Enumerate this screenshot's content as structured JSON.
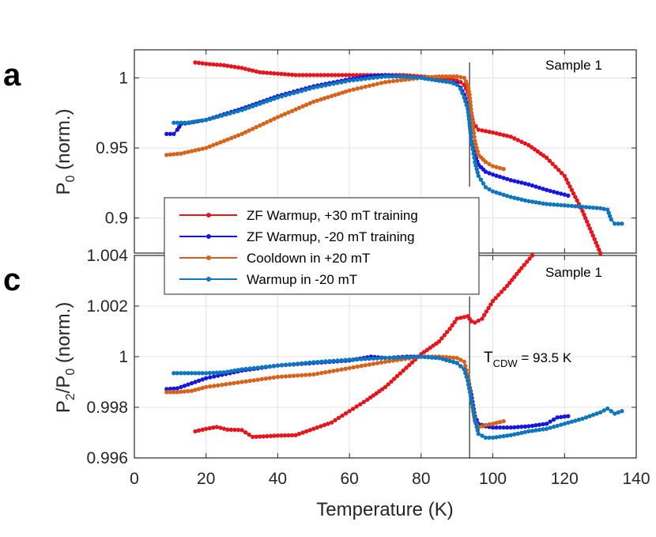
{
  "chart_data": [
    {
      "panel": "a",
      "type": "line",
      "ylabel_main": "P",
      "ylabel_sub": "0",
      "ylabel_rest": " (norm.)",
      "annotation": "Sample 1",
      "xlim": [
        0,
        140
      ],
      "ylim": [
        0.875,
        1.02
      ],
      "yticks": [
        0.9,
        0.95,
        1
      ],
      "ytick_labels": [
        "0.9",
        "0.95",
        "1"
      ],
      "xticks": [
        0,
        20,
        40,
        60,
        80,
        100,
        120,
        140
      ],
      "vline_x": 93.5,
      "grid": true,
      "series": [
        {
          "name": "ZF Warmup, +30 mT training",
          "color": "#e8141c",
          "points": [
            [
              17,
              1.011
            ],
            [
              20,
              1.01
            ],
            [
              25,
              1.009
            ],
            [
              30,
              1.007
            ],
            [
              35,
              1.004
            ],
            [
              40,
              1.003
            ],
            [
              45,
              1.002
            ],
            [
              50,
              1.002
            ],
            [
              55,
              1.002
            ],
            [
              60,
              1.002
            ],
            [
              65,
              1.002
            ],
            [
              70,
              1.002
            ],
            [
              75,
              1.002
            ],
            [
              80,
              1.001
            ],
            [
              85,
              1.0
            ],
            [
              89,
              0.999
            ],
            [
              91,
              0.997
            ],
            [
              92,
              0.995
            ],
            [
              93,
              0.99
            ],
            [
              93.5,
              0.985
            ],
            [
              94,
              0.975
            ],
            [
              94.5,
              0.968
            ],
            [
              96,
              0.963
            ],
            [
              100,
              0.961
            ],
            [
              105,
              0.958
            ],
            [
              110,
              0.952
            ],
            [
              115,
              0.943
            ],
            [
              120,
              0.93
            ],
            [
              125,
              0.905
            ],
            [
              130,
              0.875
            ]
          ]
        },
        {
          "name": "ZF Warmup, -20 mT training",
          "color": "#1616e0",
          "points": [
            [
              9,
              0.96
            ],
            [
              11,
              0.96
            ],
            [
              12,
              0.963
            ],
            [
              13,
              0.967
            ],
            [
              20,
              0.97
            ],
            [
              30,
              0.978
            ],
            [
              40,
              0.987
            ],
            [
              50,
              0.994
            ],
            [
              60,
              0.999
            ],
            [
              65,
              1.001
            ],
            [
              70,
              1.002
            ],
            [
              75,
              1.001
            ],
            [
              80,
              1.0
            ],
            [
              85,
              0.998
            ],
            [
              88,
              0.997
            ],
            [
              90,
              0.996
            ],
            [
              91,
              0.993
            ],
            [
              92,
              0.988
            ],
            [
              93,
              0.98
            ],
            [
              93.5,
              0.97
            ],
            [
              94,
              0.955
            ],
            [
              95,
              0.945
            ],
            [
              96,
              0.938
            ],
            [
              98,
              0.933
            ],
            [
              100,
              0.931
            ],
            [
              105,
              0.927
            ],
            [
              110,
              0.924
            ],
            [
              115,
              0.92
            ],
            [
              121,
              0.916
            ]
          ]
        },
        {
          "name": "Cooldown in +20 mT",
          "color": "#d9621a",
          "points": [
            [
              9,
              0.945
            ],
            [
              13,
              0.946
            ],
            [
              20,
              0.95
            ],
            [
              30,
              0.96
            ],
            [
              40,
              0.972
            ],
            [
              50,
              0.983
            ],
            [
              60,
              0.991
            ],
            [
              70,
              0.997
            ],
            [
              80,
              1.0
            ],
            [
              85,
              1.001
            ],
            [
              90,
              1.001
            ],
            [
              92,
              1.0
            ],
            [
              93,
              0.995
            ],
            [
              93.5,
              0.988
            ],
            [
              94,
              0.975
            ],
            [
              95,
              0.955
            ],
            [
              96,
              0.945
            ],
            [
              98,
              0.94
            ],
            [
              100,
              0.937
            ],
            [
              103,
              0.935
            ]
          ]
        },
        {
          "name": "Warmup in -20 mT",
          "color": "#0e76bc",
          "points": [
            [
              11,
              0.968
            ],
            [
              15,
              0.968
            ],
            [
              20,
              0.97
            ],
            [
              30,
              0.977
            ],
            [
              40,
              0.986
            ],
            [
              50,
              0.993
            ],
            [
              60,
              0.998
            ],
            [
              70,
              1.001
            ],
            [
              75,
              1.001
            ],
            [
              80,
              1.0
            ],
            [
              85,
              0.998
            ],
            [
              88,
              0.997
            ],
            [
              90,
              0.995
            ],
            [
              91,
              0.992
            ],
            [
              92,
              0.986
            ],
            [
              93,
              0.978
            ],
            [
              93.5,
              0.968
            ],
            [
              94,
              0.955
            ],
            [
              95,
              0.94
            ],
            [
              96,
              0.93
            ],
            [
              98,
              0.922
            ],
            [
              100,
              0.919
            ],
            [
              105,
              0.915
            ],
            [
              110,
              0.912
            ],
            [
              115,
              0.91
            ],
            [
              120,
              0.909
            ],
            [
              125,
              0.908
            ],
            [
              130,
              0.907
            ],
            [
              132,
              0.906
            ],
            [
              133,
              0.899
            ],
            [
              134,
              0.896
            ],
            [
              136,
              0.896
            ]
          ]
        }
      ]
    },
    {
      "panel": "c",
      "type": "line",
      "ylabel_main": "P",
      "ylabel_sub1": "2",
      "ylabel_mid": "/P",
      "ylabel_sub2": "0",
      "ylabel_rest": " (norm.)",
      "annotation": "Sample 1",
      "tcdw_main": "T",
      "tcdw_sub": "CDW",
      "tcdw_rest": " = 93.5 K",
      "xlabel": "Temperature (K)",
      "xlim": [
        0,
        140
      ],
      "ylim": [
        0.996,
        1.004
      ],
      "yticks": [
        0.996,
        0.998,
        1,
        1.002,
        1.004
      ],
      "ytick_labels": [
        "0.996",
        "0.998",
        "1",
        "1.002",
        "1.004"
      ],
      "xticks": [
        0,
        20,
        40,
        60,
        80,
        100,
        120,
        140
      ],
      "xtick_labels": [
        "0",
        "20",
        "40",
        "60",
        "80",
        "100",
        "120",
        "140"
      ],
      "vline_x": 93.5,
      "grid": true,
      "series": [
        {
          "name": "ZF Warmup, +30 mT training",
          "color": "#e8141c",
          "points": [
            [
              17,
              0.99705
            ],
            [
              20,
              0.99715
            ],
            [
              23,
              0.99722
            ],
            [
              26,
              0.99712
            ],
            [
              30,
              0.9971
            ],
            [
              33,
              0.99683
            ],
            [
              36,
              0.99685
            ],
            [
              40,
              0.99688
            ],
            [
              45,
              0.9969
            ],
            [
              50,
              0.99715
            ],
            [
              55,
              0.9974
            ],
            [
              60,
              0.99785
            ],
            [
              65,
              0.9983
            ],
            [
              70,
              0.9988
            ],
            [
              75,
              0.99945
            ],
            [
              80,
              1.0001
            ],
            [
              85,
              1.0006
            ],
            [
              88,
              1.0011
            ],
            [
              90,
              1.0015
            ],
            [
              93,
              1.0016
            ],
            [
              94,
              1.0014
            ],
            [
              95,
              1.00135
            ],
            [
              97,
              1.0015
            ],
            [
              100,
              1.0022
            ],
            [
              104,
              1.0028
            ],
            [
              108,
              1.0035
            ],
            [
              111,
              1.004
            ]
          ]
        },
        {
          "name": "ZF Warmup, -20 mT training",
          "color": "#1616e0",
          "points": [
            [
              9,
              0.99872
            ],
            [
              12,
              0.99875
            ],
            [
              15,
              0.9989
            ],
            [
              20,
              0.99915
            ],
            [
              30,
              0.99945
            ],
            [
              40,
              0.99965
            ],
            [
              50,
              0.99975
            ],
            [
              60,
              0.99985
            ],
            [
              66,
              1.0
            ],
            [
              70,
              0.99995
            ],
            [
              76,
              1.0
            ],
            [
              80,
              1.0
            ],
            [
              85,
              0.99995
            ],
            [
              90,
              0.99975
            ],
            [
              92,
              0.9995
            ],
            [
              93,
              0.9992
            ],
            [
              94,
              0.9985
            ],
            [
              95,
              0.99765
            ],
            [
              96,
              0.99735
            ],
            [
              98,
              0.99725
            ],
            [
              100,
              0.9972
            ],
            [
              105,
              0.9972
            ],
            [
              110,
              0.99725
            ],
            [
              115,
              0.99735
            ],
            [
              118,
              0.9976
            ],
            [
              121,
              0.99765
            ]
          ]
        },
        {
          "name": "Cooldown in +20 mT",
          "color": "#d9621a",
          "points": [
            [
              9,
              0.9986
            ],
            [
              12,
              0.9986
            ],
            [
              16,
              0.99865
            ],
            [
              20,
              0.9988
            ],
            [
              30,
              0.999
            ],
            [
              40,
              0.9992
            ],
            [
              50,
              0.9993
            ],
            [
              60,
              0.99955
            ],
            [
              70,
              0.9998
            ],
            [
              80,
              1.0
            ],
            [
              85,
              1.0
            ],
            [
              90,
              0.99995
            ],
            [
              92,
              0.9998
            ],
            [
              93,
              0.9993
            ],
            [
              94,
              0.9983
            ],
            [
              95,
              0.99745
            ],
            [
              96,
              0.9972
            ],
            [
              98,
              0.9973
            ],
            [
              100,
              0.99735
            ],
            [
              103,
              0.99745
            ]
          ]
        },
        {
          "name": "Warmup in -20 mT",
          "color": "#0e76bc",
          "points": [
            [
              11,
              0.99935
            ],
            [
              15,
              0.99935
            ],
            [
              20,
              0.99935
            ],
            [
              25,
              0.99938
            ],
            [
              30,
              0.9995
            ],
            [
              40,
              0.99965
            ],
            [
              50,
              0.99978
            ],
            [
              60,
              0.99988
            ],
            [
              70,
              0.99995
            ],
            [
              80,
              1.0
            ],
            [
              85,
              0.99995
            ],
            [
              90,
              0.99975
            ],
            [
              92,
              0.9995
            ],
            [
              93,
              0.99905
            ],
            [
              94,
              0.9983
            ],
            [
              95,
              0.9975
            ],
            [
              96,
              0.99695
            ],
            [
              98,
              0.9968
            ],
            [
              100,
              0.9968
            ],
            [
              105,
              0.9969
            ],
            [
              110,
              0.99705
            ],
            [
              115,
              0.99715
            ],
            [
              120,
              0.99735
            ],
            [
              125,
              0.99755
            ],
            [
              130,
              0.9978
            ],
            [
              132,
              0.99795
            ],
            [
              134,
              0.99775
            ],
            [
              136,
              0.99785
            ]
          ]
        }
      ]
    }
  ]
}
